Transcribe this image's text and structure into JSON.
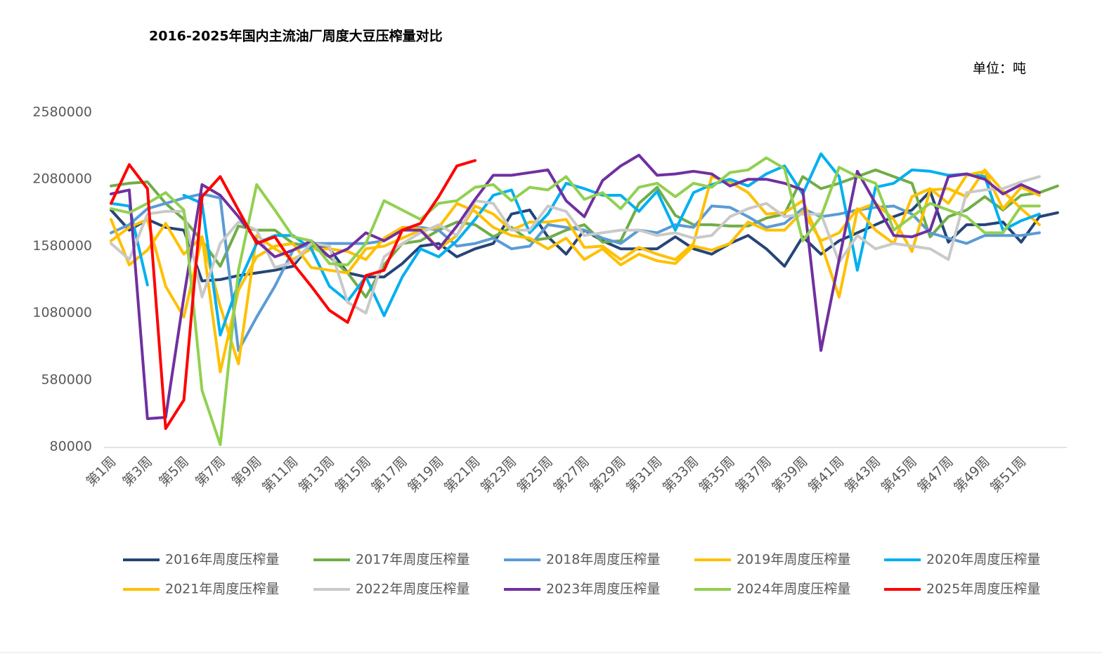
{
  "chart_data": {
    "type": "line",
    "title": "2016-2025年国内主流油厂周度大豆压榨量对比",
    "unit_label": "单位：吨",
    "categories": [
      "第1周",
      null,
      "第3周",
      null,
      "第5周",
      null,
      "第7周",
      null,
      "第9周",
      null,
      "第11周",
      null,
      "第13周",
      null,
      "第15周",
      null,
      "第17周",
      null,
      "第19周",
      null,
      "第21周",
      null,
      "第23周",
      null,
      "第25周",
      null,
      "第27周",
      null,
      "第29周",
      null,
      "第31周",
      null,
      "第33周",
      null,
      "第35周",
      null,
      "第37周",
      null,
      "第39周",
      null,
      "第41周",
      null,
      "第43周",
      null,
      "第45周",
      null,
      "第47周",
      null,
      "第49周",
      null,
      "第51周",
      null,
      null
    ],
    "ylim": [
      80000,
      2580000
    ],
    "yticks": [
      80000,
      580000,
      1080000,
      1580000,
      2080000,
      2580000
    ],
    "grid": false,
    "series": [
      {
        "name": "2016年周度压榨量",
        "color": "#264478",
        "values": [
          1850000,
          1700000,
          1780000,
          1720000,
          1700000,
          1320000,
          1330000,
          1360000,
          1380000,
          1400000,
          1430000,
          1600000,
          1560000,
          1380000,
          1350000,
          1350000,
          1450000,
          1580000,
          1600000,
          1500000,
          1560000,
          1600000,
          1820000,
          1850000,
          1650000,
          1520000,
          1700000,
          1620000,
          1560000,
          1560000,
          1560000,
          1650000,
          1560000,
          1520000,
          1600000,
          1660000,
          1560000,
          1430000,
          1650000,
          1520000,
          1620000,
          1680000,
          1740000,
          1800000,
          1850000,
          1990000,
          1610000,
          1740000,
          1740000,
          1760000,
          1610000,
          1800000,
          1830000
        ]
      },
      {
        "name": "2017年周度压榨量",
        "color": "#70ad47",
        "values": [
          2030000,
          2050000,
          2060000,
          1900000,
          1780000,
          1620000,
          1430000,
          1730000,
          1700000,
          1700000,
          1600000,
          1580000,
          1500000,
          1380000,
          1200000,
          1440000,
          1600000,
          1620000,
          1700000,
          1760000,
          1740000,
          1650000,
          1720000,
          1620000,
          1640000,
          1700000,
          1740000,
          1610000,
          1620000,
          1900000,
          2020000,
          1810000,
          1740000,
          1740000,
          1730000,
          1730000,
          1790000,
          1820000,
          2100000,
          2010000,
          2050000,
          2100000,
          2150000,
          2100000,
          2050000,
          1650000,
          1800000,
          1850000,
          1950000,
          1850000,
          1960000,
          1980000,
          2030000
        ]
      },
      {
        "name": "2018年周度压榨量",
        "color": "#5b9bd5",
        "values": [
          1680000,
          1740000,
          1860000,
          1900000,
          1940000,
          1970000,
          1940000,
          800000,
          1050000,
          1280000,
          1550000,
          1600000,
          1600000,
          1600000,
          1600000,
          1620000,
          1720000,
          1720000,
          1700000,
          1580000,
          1600000,
          1640000,
          1560000,
          1580000,
          1740000,
          1720000,
          1700000,
          1640000,
          1600000,
          1700000,
          1680000,
          1740000,
          1720000,
          1880000,
          1870000,
          1800000,
          1720000,
          1750000,
          1860000,
          1800000,
          1820000,
          1850000,
          1870000,
          1880000,
          1820000,
          1680000,
          1640000,
          1600000,
          1660000,
          1660000,
          1660000,
          1680000,
          null
        ]
      },
      {
        "name": "2019年周度压榨量",
        "color": "#ffc000",
        "values": [
          1780000,
          1440000,
          1550000,
          1750000,
          1520000,
          1650000,
          1130000,
          700000,
          1660000,
          1560000,
          1480000,
          1560000,
          1560000,
          1540000,
          1480000,
          1640000,
          1720000,
          1710000,
          1560000,
          1660000,
          1880000,
          1820000,
          1700000,
          1760000,
          1760000,
          1780000,
          1570000,
          1580000,
          1480000,
          1570000,
          1520000,
          1480000,
          1600000,
          2100000,
          2060000,
          1980000,
          1820000,
          1830000,
          1920000,
          1600000,
          1200000,
          1850000,
          1900000,
          1780000,
          1540000,
          2000000,
          2010000,
          1950000,
          2150000,
          1990000,
          1860000,
          1740000,
          null
        ]
      },
      {
        "name": "2020年周度压榨量",
        "color": "#00b0f0",
        "values": [
          1900000,
          1880000,
          1290000,
          null,
          1960000,
          1900000,
          915000,
          1300000,
          1600000,
          1660000,
          1660000,
          1560000,
          1280000,
          1170000,
          1350000,
          1060000,
          1350000,
          1560000,
          1500000,
          1620000,
          1780000,
          1960000,
          2000000,
          1680000,
          1820000,
          2050000,
          2010000,
          1960000,
          1960000,
          1840000,
          1990000,
          1700000,
          1980000,
          2040000,
          2080000,
          2030000,
          2120000,
          2180000,
          1970000,
          2270000,
          2100000,
          1400000,
          2020000,
          2050000,
          2150000,
          2140000,
          2110000,
          2120000,
          2100000,
          1700000,
          1770000,
          1820000,
          null
        ]
      },
      {
        "name": "2021年周度压榨量",
        "color": "#ffc000",
        "values": [
          1620000,
          1720000,
          1780000,
          1280000,
          1050000,
          1650000,
          640000,
          1250000,
          1500000,
          1580000,
          1600000,
          1420000,
          1400000,
          1380000,
          1560000,
          1580000,
          1640000,
          1700000,
          1720000,
          1900000,
          1840000,
          1720000,
          1660000,
          1640000,
          1560000,
          1640000,
          1480000,
          1560000,
          1440000,
          1520000,
          1470000,
          1450000,
          1580000,
          1550000,
          1600000,
          1760000,
          1700000,
          1700000,
          1840000,
          1620000,
          1680000,
          1860000,
          1700000,
          1600000,
          1950000,
          2010000,
          1900000,
          2110000,
          2140000,
          1860000,
          2020000,
          1960000,
          null
        ]
      },
      {
        "name": "2022年周度压榨量",
        "color": "#c9c9c9",
        "values": [
          1600000,
          1480000,
          1820000,
          1840000,
          1840000,
          1200000,
          1600000,
          1760000,
          1700000,
          1420000,
          1460000,
          1600000,
          1580000,
          1160000,
          1080000,
          1500000,
          1600000,
          1680000,
          1740000,
          1660000,
          1920000,
          1900000,
          1700000,
          1700000,
          1880000,
          1840000,
          1660000,
          1680000,
          1700000,
          1700000,
          1660000,
          1680000,
          1640000,
          1660000,
          1800000,
          1860000,
          1900000,
          1800000,
          1820000,
          1820000,
          1460000,
          1660000,
          1560000,
          1600000,
          1580000,
          1560000,
          1480000,
          1980000,
          2000000,
          2010000,
          2060000,
          2100000,
          null
        ]
      },
      {
        "name": "2023年周度压榨量",
        "color": "#7030a0",
        "values": [
          1970000,
          2000000,
          290000,
          300000,
          1200000,
          2040000,
          1960000,
          1800000,
          1620000,
          1500000,
          1550000,
          1620000,
          1500000,
          1560000,
          1680000,
          1620000,
          1700000,
          1700000,
          1560000,
          1730000,
          1930000,
          2110000,
          2110000,
          2130000,
          2150000,
          1920000,
          1800000,
          2070000,
          2180000,
          2260000,
          2110000,
          2120000,
          2140000,
          2120000,
          2030000,
          2080000,
          2080000,
          2050000,
          2000000,
          800000,
          1480000,
          2140000,
          1900000,
          1660000,
          1650000,
          1700000,
          2100000,
          2120000,
          2080000,
          1970000,
          2040000,
          1980000,
          null
        ]
      },
      {
        "name": "2024年周度压榨量",
        "color": "#92d050",
        "values": [
          1860000,
          1830000,
          1900000,
          1980000,
          1850000,
          500000,
          96000,
          1400000,
          2040000,
          1850000,
          1650000,
          1620000,
          1450000,
          1440000,
          1600000,
          1920000,
          1850000,
          1780000,
          1900000,
          1920000,
          2020000,
          2040000,
          1920000,
          2020000,
          2000000,
          2100000,
          1930000,
          1980000,
          1860000,
          2020000,
          2050000,
          1950000,
          2050000,
          2020000,
          2130000,
          2150000,
          2240000,
          2160000,
          1620000,
          1800000,
          2170000,
          2100000,
          2050000,
          1700000,
          1800000,
          1900000,
          1850000,
          1800000,
          1680000,
          1680000,
          1880000,
          1880000,
          null
        ]
      },
      {
        "name": "2025年周度压榨量",
        "color": "#ff0000",
        "values": [
          1900000,
          2190000,
          2010000,
          216000,
          430000,
          1950000,
          2100000,
          1850000,
          1600000,
          1650000,
          1450000,
          1280000,
          1100000,
          1010000,
          1360000,
          1400000,
          1700000,
          1750000,
          1950000,
          2180000,
          2220000,
          null,
          null,
          null,
          null,
          null,
          null,
          null,
          null,
          null,
          null,
          null,
          null,
          null,
          null,
          null,
          null,
          null,
          null,
          null,
          null,
          null,
          null,
          null,
          null,
          null,
          null,
          null,
          null,
          null,
          null,
          null,
          null
        ]
      }
    ]
  }
}
